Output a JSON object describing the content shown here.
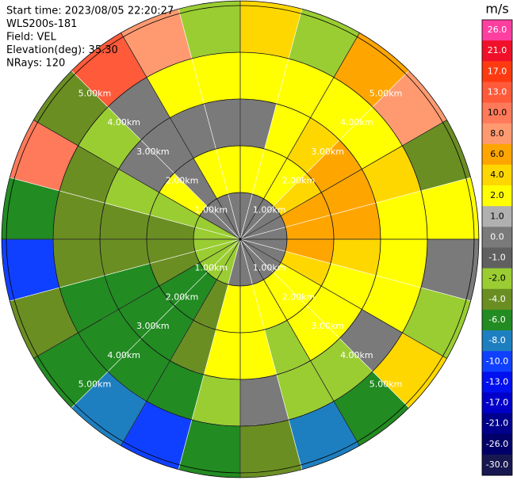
{
  "chart_data": {
    "type": "ppi",
    "annotations": [
      "Start time: 2023/08/05 22:20:27",
      "WLS200s-181",
      "Field: VEL",
      "Elevation(deg): 35.30",
      "NRays: 120"
    ],
    "azimuths": [
      0,
      15,
      30,
      45,
      60,
      75,
      90,
      105,
      120,
      135,
      150,
      165,
      180,
      195,
      210,
      225,
      240,
      255,
      270,
      285,
      300,
      315,
      330,
      345
    ],
    "ranges": [
      0,
      1,
      2,
      3,
      4,
      5.1
    ],
    "values": [
      [
        0,
        2,
        0,
        2,
        4
      ],
      [
        0,
        2,
        2,
        2,
        -2
      ],
      [
        0,
        2,
        4,
        2,
        6
      ],
      [
        0,
        4,
        6,
        2,
        8
      ],
      [
        0,
        6,
        6,
        4,
        -4
      ],
      [
        0,
        6,
        6,
        2,
        2
      ],
      [
        0,
        6,
        4,
        2,
        0
      ],
      [
        0,
        4,
        2,
        2,
        -2
      ],
      [
        0,
        2,
        2,
        0,
        4
      ],
      [
        0,
        2,
        2,
        -2,
        -6
      ],
      [
        0,
        2,
        -2,
        -2,
        -8
      ],
      [
        0,
        2,
        2,
        0,
        -4
      ],
      [
        0,
        2,
        2,
        -2,
        -6
      ],
      [
        -2,
        -4,
        -4,
        -6,
        -10
      ],
      [
        -2,
        -6,
        -6,
        -6,
        -8
      ],
      [
        -2,
        -6,
        -6,
        -6,
        -6
      ],
      [
        -2,
        -4,
        -6,
        -6,
        -4
      ],
      [
        -2,
        -4,
        -4,
        -4,
        -10
      ],
      [
        -2,
        -4,
        -4,
        -4,
        -6
      ],
      [
        -2,
        -2,
        -2,
        -4,
        10
      ],
      [
        0,
        2,
        0,
        -2,
        -4
      ],
      [
        0,
        0,
        0,
        0,
        13
      ],
      [
        0,
        2,
        0,
        2,
        8
      ],
      [
        0,
        2,
        0,
        2,
        -2
      ]
    ],
    "range_rings": [
      {
        "value": 1,
        "label": "1.00km"
      },
      {
        "value": 2,
        "label": "2.00km"
      },
      {
        "value": 3,
        "label": "3.00km"
      },
      {
        "value": 4,
        "label": "4.00km"
      },
      {
        "value": 5,
        "label": "5.00km"
      }
    ],
    "colorbar": {
      "title": "m/s",
      "ticks": [
        {
          "value": 26,
          "label": "26.0"
        },
        {
          "value": 21,
          "label": "21.0"
        },
        {
          "value": 17,
          "label": "17.0"
        },
        {
          "value": 13,
          "label": "13.0"
        },
        {
          "value": 10,
          "label": "10.0"
        },
        {
          "value": 8,
          "label": "8.0"
        },
        {
          "value": 6,
          "label": "6.0"
        },
        {
          "value": 4,
          "label": "4.0"
        },
        {
          "value": 2,
          "label": "2.0"
        },
        {
          "value": 1,
          "label": "1.0"
        },
        {
          "value": 0,
          "label": "0.0"
        },
        {
          "value": -1,
          "label": "-1.0"
        },
        {
          "value": -2,
          "label": "-2.0"
        },
        {
          "value": -4,
          "label": "-4.0"
        },
        {
          "value": -6,
          "label": "-6.0"
        },
        {
          "value": -8,
          "label": "-8.0"
        },
        {
          "value": -10,
          "label": "-10.0"
        },
        {
          "value": -13,
          "label": "-13.0"
        },
        {
          "value": -17,
          "label": "-17.0"
        },
        {
          "value": -21,
          "label": "-21.0"
        },
        {
          "value": -26,
          "label": "-26.0"
        },
        {
          "value": -30,
          "label": "-30.0"
        }
      ],
      "colors": [
        "#ff3fa0",
        "#f0102a",
        "#ff3a10",
        "#ff5a3a",
        "#ff7a5a",
        "#ff9a70",
        "#ffa500",
        "#ffd700",
        "#ffff00",
        "#b0b0b0",
        "#7a7a7a",
        "#606060",
        "#9acd32",
        "#6b8e23",
        "#228b22",
        "#1e7fc0",
        "#1040ff",
        "#0010ee",
        "#0000c8",
        "#00008c",
        "#000068",
        "#181850"
      ]
    }
  }
}
